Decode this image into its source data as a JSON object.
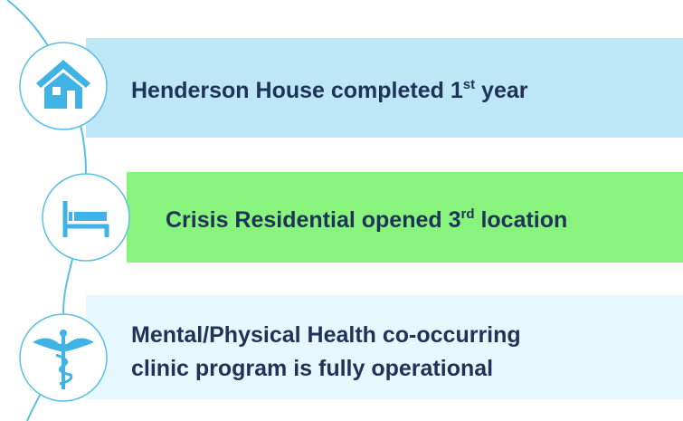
{
  "items": [
    {
      "label": "Henderson House completed 1",
      "sup": "st",
      "label_end": " year"
    },
    {
      "label": "Crisis Residential opened 3",
      "sup": "rd",
      "label_end": " location"
    },
    {
      "lines": [
        "Mental/Physical Health co-occurring",
        "clinic program is fully operational"
      ]
    }
  ]
}
